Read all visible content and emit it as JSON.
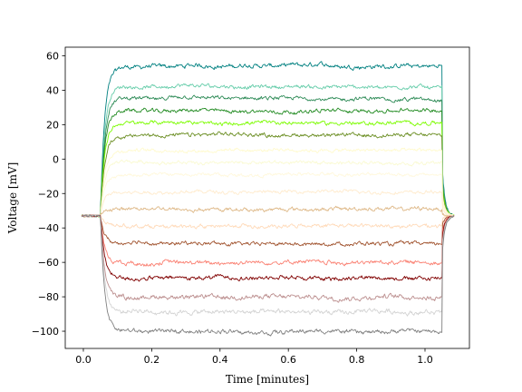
{
  "chart_data": {
    "type": "line",
    "title": "",
    "xlabel": "Time [minutes]",
    "ylabel": "Voltage [mV]",
    "xlim": [
      -0.053,
      1.13
    ],
    "ylim": [
      -110,
      65
    ],
    "x_ticks": [
      0.0,
      0.2,
      0.4,
      0.6,
      0.8,
      1.0
    ],
    "x_tick_labels": [
      "0.0",
      "0.2",
      "0.4",
      "0.6",
      "0.8",
      "1.0"
    ],
    "y_ticks": [
      -100,
      -80,
      -60,
      -40,
      -20,
      0,
      20,
      40,
      60
    ],
    "y_tick_labels": [
      "−100",
      "−80",
      "−60",
      "−40",
      "−20",
      "0",
      "20",
      "40",
      "60"
    ],
    "grid": false,
    "legend": false,
    "step_on": 0.05,
    "step_off": 1.05,
    "baseline_mv": -33,
    "series": [
      {
        "color": "#008080",
        "steady": 54,
        "noise": 0.9
      },
      {
        "color": "#66cdaa",
        "steady": 42,
        "noise": 0.8
      },
      {
        "color": "#2e8b57",
        "steady": 35,
        "noise": 0.8
      },
      {
        "color": "#228b22",
        "steady": 28,
        "noise": 0.8
      },
      {
        "color": "#7cfc00",
        "steady": 21,
        "noise": 0.8
      },
      {
        "color": "#6b8e23",
        "steady": 14,
        "noise": 0.8
      },
      {
        "color": "#fffacd",
        "steady": 5,
        "noise": 0.7
      },
      {
        "color": "#fafad2",
        "steady": -2,
        "noise": 0.7
      },
      {
        "color": "#fff8dc",
        "steady": -9,
        "noise": 0.7
      },
      {
        "color": "#ffebcd",
        "steady": -19,
        "noise": 0.7
      },
      {
        "color": "#deb887",
        "steady": -29,
        "noise": 0.8
      },
      {
        "color": "#ffdab9",
        "steady": -39,
        "noise": 0.8
      },
      {
        "color": "#a0522d",
        "steady": -49,
        "noise": 0.8
      },
      {
        "color": "#fa8072",
        "steady": -60,
        "noise": 0.9
      },
      {
        "color": "#800000",
        "steady": -69,
        "noise": 0.9
      },
      {
        "color": "#bc8f8f",
        "steady": -80,
        "noise": 1.0
      },
      {
        "color": "#d3d3d3",
        "steady": -89,
        "noise": 1.0
      },
      {
        "color": "#808080",
        "steady": -100,
        "noise": 0.9
      }
    ]
  }
}
